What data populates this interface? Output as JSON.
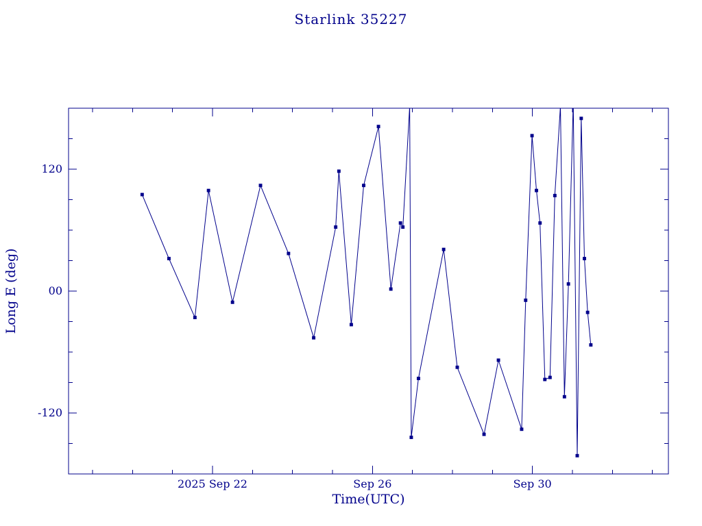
{
  "colors": {
    "line": "#00008b",
    "background": "#ffffff"
  },
  "chart_data": {
    "type": "line",
    "title": "Starlink 35227",
    "xlabel": "Time(UTC)",
    "ylabel": "Long E (deg)",
    "x_unit": "days",
    "xlim_days": [
      0.4,
      15.4
    ],
    "ylim": [
      -180,
      180
    ],
    "grid": false,
    "legend": "none",
    "yticks": [
      {
        "value": 120,
        "label": "120"
      },
      {
        "value": 0,
        "label": "00"
      },
      {
        "value": -120,
        "label": "-120"
      }
    ],
    "yticks_minor": [
      -150,
      -90,
      -60,
      -30,
      30,
      60,
      90,
      150
    ],
    "xticks": [
      {
        "day": 4,
        "label": "2025 Sep 22"
      },
      {
        "day": 8,
        "label": "Sep 26"
      },
      {
        "day": 12,
        "label": "Sep 30"
      }
    ],
    "xticks_minor": [
      1,
      2,
      3,
      5,
      6,
      7,
      9,
      10,
      11,
      13,
      14,
      15
    ],
    "series": [
      {
        "name": "Long E",
        "marker": "square",
        "points": [
          [
            2.24,
            95
          ],
          [
            2.91,
            32
          ],
          [
            3.56,
            -26
          ],
          [
            3.9,
            99
          ],
          [
            4.5,
            -11
          ],
          [
            5.2,
            104
          ],
          [
            5.9,
            37
          ],
          [
            6.53,
            -46
          ],
          [
            7.08,
            63
          ],
          [
            7.16,
            118
          ],
          [
            7.47,
            -33
          ],
          [
            7.78,
            104
          ],
          [
            8.15,
            162
          ],
          [
            8.46,
            2
          ],
          [
            8.7,
            67
          ],
          [
            8.76,
            63
          ],
          [
            8.93,
            182
          ],
          [
            8.97,
            -144
          ],
          [
            9.15,
            -86
          ],
          [
            9.78,
            41
          ],
          [
            10.12,
            -75
          ],
          [
            10.79,
            -141
          ],
          [
            11.15,
            -68
          ],
          [
            11.73,
            -136
          ],
          [
            11.83,
            -9
          ],
          [
            11.99,
            153
          ],
          [
            12.1,
            99
          ],
          [
            12.19,
            67
          ],
          [
            12.31,
            -87
          ],
          [
            12.44,
            -85
          ],
          [
            12.56,
            94
          ],
          [
            12.7,
            182
          ],
          [
            12.8,
            -104
          ],
          [
            12.9,
            7
          ],
          [
            13.02,
            186
          ],
          [
            13.12,
            -162
          ],
          [
            13.22,
            170
          ],
          [
            13.3,
            32
          ],
          [
            13.38,
            -21
          ],
          [
            13.46,
            -53
          ]
        ]
      }
    ]
  }
}
